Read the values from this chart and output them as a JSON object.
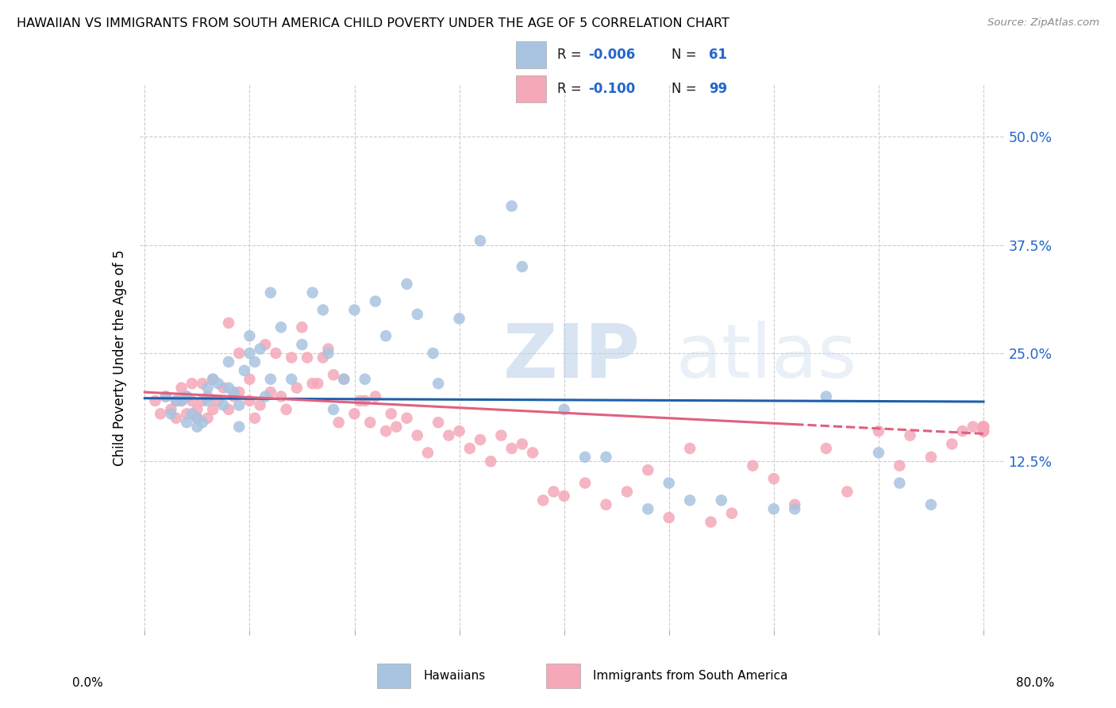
{
  "title": "HAWAIIAN VS IMMIGRANTS FROM SOUTH AMERICA CHILD POVERTY UNDER THE AGE OF 5 CORRELATION CHART",
  "source": "Source: ZipAtlas.com",
  "ylabel": "Child Poverty Under the Age of 5",
  "ytick_labels": [
    "12.5%",
    "25.0%",
    "37.5%",
    "50.0%"
  ],
  "ytick_values": [
    0.125,
    0.25,
    0.375,
    0.5
  ],
  "xlim": [
    -0.005,
    0.82
  ],
  "ylim": [
    -0.07,
    0.56
  ],
  "hawaiian_color": "#a8c4e0",
  "south_america_color": "#f4a8b8",
  "trend_hawaiian_color": "#1f5faa",
  "trend_sa_color": "#e06080",
  "watermark_zip": "ZIP",
  "watermark_atlas": "atlas",
  "hawaiian_x": [
    0.02,
    0.035,
    0.04,
    0.045,
    0.05,
    0.055,
    0.06,
    0.065,
    0.07,
    0.075,
    0.08,
    0.085,
    0.09,
    0.095,
    0.1,
    0.105,
    0.11,
    0.115,
    0.12,
    0.13,
    0.14,
    0.15,
    0.16,
    0.17,
    0.175,
    0.18,
    0.19,
    0.2,
    0.21,
    0.22,
    0.23,
    0.25,
    0.26,
    0.275,
    0.28,
    0.3,
    0.32,
    0.35,
    0.36,
    0.4,
    0.42,
    0.44,
    0.48,
    0.5,
    0.52,
    0.55,
    0.6,
    0.62,
    0.65,
    0.7,
    0.72,
    0.75,
    0.025,
    0.03,
    0.04,
    0.05,
    0.06,
    0.08,
    0.09,
    0.1,
    0.12
  ],
  "hawaiian_y": [
    0.2,
    0.195,
    0.17,
    0.18,
    0.175,
    0.17,
    0.21,
    0.22,
    0.215,
    0.19,
    0.24,
    0.205,
    0.19,
    0.23,
    0.27,
    0.24,
    0.255,
    0.2,
    0.22,
    0.28,
    0.22,
    0.26,
    0.32,
    0.3,
    0.25,
    0.185,
    0.22,
    0.3,
    0.22,
    0.31,
    0.27,
    0.33,
    0.295,
    0.25,
    0.215,
    0.29,
    0.38,
    0.42,
    0.35,
    0.185,
    0.13,
    0.13,
    0.07,
    0.1,
    0.08,
    0.08,
    0.07,
    0.07,
    0.2,
    0.135,
    0.1,
    0.075,
    0.18,
    0.195,
    0.2,
    0.165,
    0.195,
    0.21,
    0.165,
    0.25,
    0.32
  ],
  "sa_x": [
    0.01,
    0.015,
    0.02,
    0.025,
    0.03,
    0.03,
    0.035,
    0.035,
    0.04,
    0.04,
    0.045,
    0.045,
    0.05,
    0.05,
    0.055,
    0.055,
    0.06,
    0.06,
    0.065,
    0.065,
    0.07,
    0.075,
    0.08,
    0.08,
    0.085,
    0.09,
    0.09,
    0.1,
    0.1,
    0.105,
    0.11,
    0.115,
    0.12,
    0.125,
    0.13,
    0.135,
    0.14,
    0.145,
    0.15,
    0.155,
    0.16,
    0.165,
    0.17,
    0.175,
    0.18,
    0.185,
    0.19,
    0.2,
    0.205,
    0.21,
    0.215,
    0.22,
    0.23,
    0.235,
    0.24,
    0.25,
    0.26,
    0.27,
    0.28,
    0.29,
    0.3,
    0.31,
    0.32,
    0.33,
    0.34,
    0.35,
    0.36,
    0.37,
    0.38,
    0.39,
    0.4,
    0.42,
    0.44,
    0.46,
    0.48,
    0.5,
    0.52,
    0.54,
    0.56,
    0.58,
    0.6,
    0.62,
    0.65,
    0.67,
    0.7,
    0.72,
    0.73,
    0.75,
    0.77,
    0.78,
    0.79,
    0.8,
    0.8,
    0.8,
    0.8,
    0.8,
    0.8,
    0.8,
    0.8
  ],
  "sa_y": [
    0.195,
    0.18,
    0.2,
    0.185,
    0.175,
    0.195,
    0.195,
    0.21,
    0.18,
    0.2,
    0.195,
    0.215,
    0.185,
    0.175,
    0.195,
    0.215,
    0.175,
    0.2,
    0.185,
    0.22,
    0.195,
    0.21,
    0.185,
    0.285,
    0.2,
    0.205,
    0.25,
    0.195,
    0.22,
    0.175,
    0.19,
    0.26,
    0.205,
    0.25,
    0.2,
    0.185,
    0.245,
    0.21,
    0.28,
    0.245,
    0.215,
    0.215,
    0.245,
    0.255,
    0.225,
    0.17,
    0.22,
    0.18,
    0.195,
    0.195,
    0.17,
    0.2,
    0.16,
    0.18,
    0.165,
    0.175,
    0.155,
    0.135,
    0.17,
    0.155,
    0.16,
    0.14,
    0.15,
    0.125,
    0.155,
    0.14,
    0.145,
    0.135,
    0.08,
    0.09,
    0.085,
    0.1,
    0.075,
    0.09,
    0.115,
    0.06,
    0.14,
    0.055,
    0.065,
    0.12,
    0.105,
    0.075,
    0.14,
    0.09,
    0.16,
    0.12,
    0.155,
    0.13,
    0.145,
    0.16,
    0.165,
    0.16,
    0.165,
    0.16,
    0.165,
    0.16,
    0.165,
    0.16,
    0.165
  ],
  "trend_h_start": 0.198,
  "trend_h_end": 0.194,
  "trend_sa_start": 0.205,
  "trend_sa_end": 0.157,
  "trend_sa_solid_end": 0.62,
  "xtick_positions": [
    0.0,
    0.1,
    0.2,
    0.3,
    0.4,
    0.5,
    0.6,
    0.7,
    0.8
  ]
}
